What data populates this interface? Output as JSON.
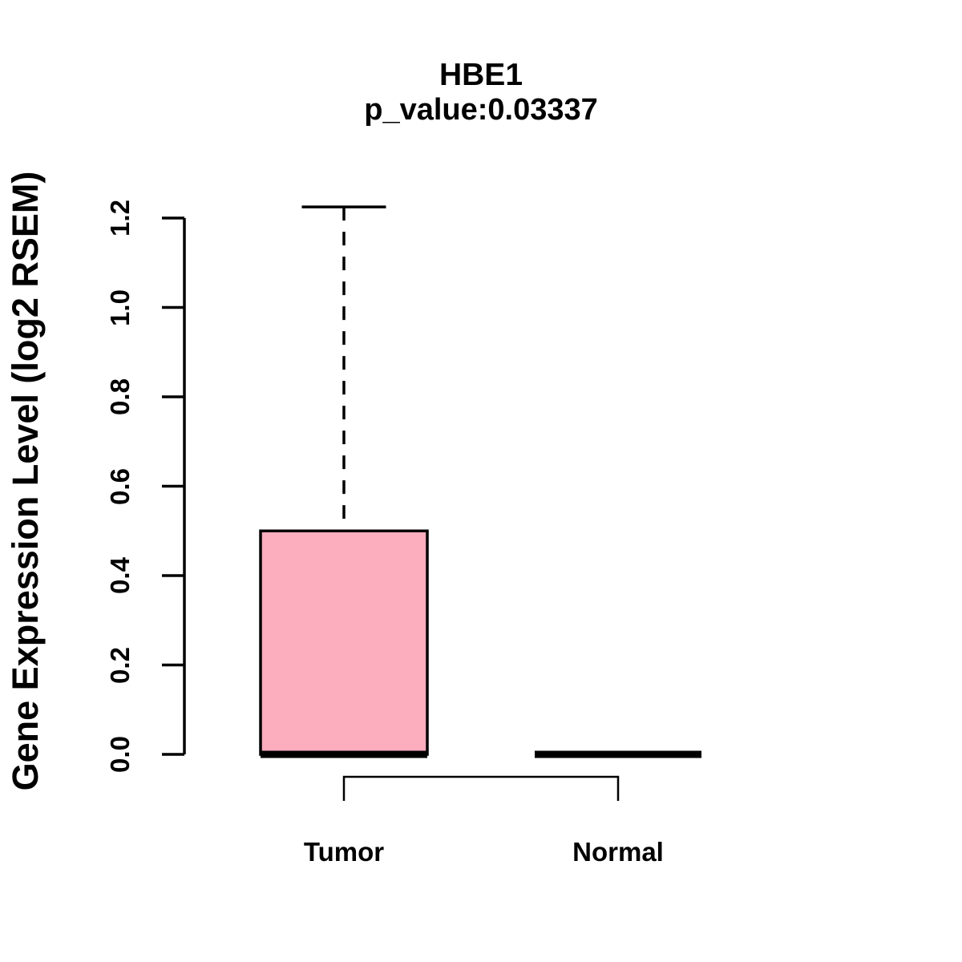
{
  "figure": {
    "background_color": "#FFFFFF",
    "text_color": "#000000"
  },
  "chart_data": {
    "type": "boxplot",
    "title": "HBE1",
    "subtitle": "p_value:0.03337",
    "p_value": 0.03337,
    "ylabel": "Gene Expression Level (log2 RSEM)",
    "xlabel": "",
    "ylim": [
      0,
      1.225
    ],
    "yticks": [
      "0.0",
      "0.2",
      "0.4",
      "0.6",
      "0.8",
      "1.0",
      "1.2"
    ],
    "ytick_values": [
      0.0,
      0.2,
      0.4,
      0.6,
      0.8,
      1.0,
      1.2
    ],
    "grid": false,
    "legend_position": "none",
    "categories": [
      "Tumor",
      "Normal"
    ],
    "series": [
      {
        "name": "Tumor",
        "whisker_low": 0.0,
        "q1": 0.0,
        "median": 0.0,
        "q3": 0.5,
        "whisker_high": 1.225,
        "fill_color": "#FCADBE"
      },
      {
        "name": "Normal",
        "whisker_low": 0.0,
        "q1": 0.0,
        "median": 0.0,
        "q3": 0.0,
        "whisker_high": 0.0,
        "fill_color": "#FCADBE"
      }
    ],
    "annotations": {
      "comparison_bracket_between": [
        "Tumor",
        "Normal"
      ]
    },
    "colors": {
      "stroke": "#000000",
      "box_fill": "#FCADBE"
    }
  }
}
